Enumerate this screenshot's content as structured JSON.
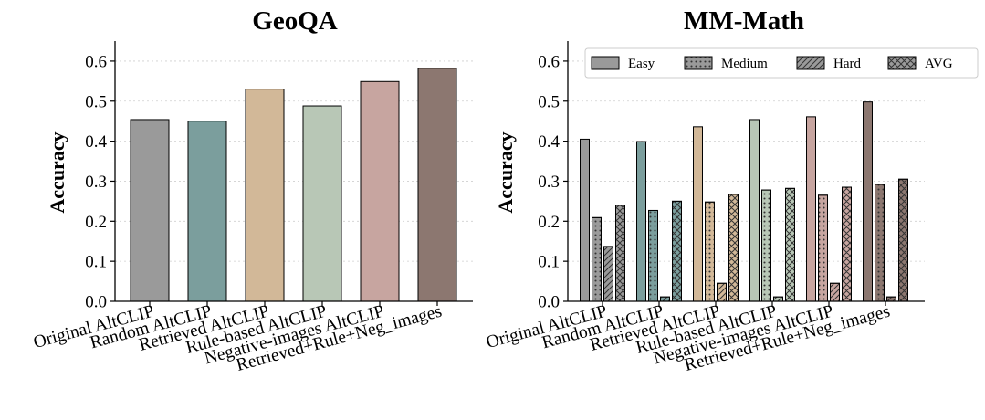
{
  "chart_data": [
    {
      "type": "bar",
      "title": "GeoQA",
      "xlabel": "",
      "ylabel": "Accuracy",
      "ylim": [
        0,
        0.65
      ],
      "yticks": [
        "0.0",
        "0.1",
        "0.2",
        "0.3",
        "0.4",
        "0.5",
        "0.6"
      ],
      "grid": "horizontal dotted",
      "categories": [
        "Original AltCLIP",
        "Random AltCLIP",
        "Retrieved AltCLIP",
        "Rule-based AltCLIP",
        "Negative-images AltCLIP",
        "Retrieved+Rule+Neg_images"
      ],
      "values": [
        0.454,
        0.45,
        0.53,
        0.488,
        0.549,
        0.582
      ],
      "colors": [
        "#9a9a9a",
        "#7b9e9d",
        "#d2b898",
        "#b8c7b6",
        "#c7a5a0",
        "#8c7770"
      ]
    },
    {
      "type": "bar",
      "title": "MM-Math",
      "xlabel": "",
      "ylabel": "Accuracy",
      "ylim": [
        0,
        0.65
      ],
      "yticks": [
        "0.0",
        "0.1",
        "0.2",
        "0.3",
        "0.4",
        "0.5",
        "0.6"
      ],
      "grid": "horizontal dotted",
      "legend": "top-right",
      "categories": [
        "Original AltCLIP",
        "Random AltCLIP",
        "Retrieved AltCLIP",
        "Rule-based AltCLIP",
        "Negative-images AltCLIP",
        "Retrieved+Rule+Neg_images"
      ],
      "colors": [
        "#9a9a9a",
        "#7b9e9d",
        "#d2b898",
        "#b8c7b6",
        "#c7a5a0",
        "#8c7770"
      ],
      "series": [
        {
          "name": "Easy",
          "pattern": "none",
          "values": [
            0.405,
            0.399,
            0.436,
            0.454,
            0.461,
            0.498
          ]
        },
        {
          "name": "Medium",
          "pattern": "dots",
          "values": [
            0.209,
            0.227,
            0.248,
            0.278,
            0.265,
            0.292
          ]
        },
        {
          "name": "Hard",
          "pattern": "hatch",
          "values": [
            0.137,
            0.011,
            0.045,
            0.011,
            0.045,
            0.011
          ]
        },
        {
          "name": "AVG",
          "pattern": "crosshatch",
          "values": [
            0.24,
            0.25,
            0.267,
            0.282,
            0.285,
            0.305
          ]
        }
      ]
    }
  ]
}
